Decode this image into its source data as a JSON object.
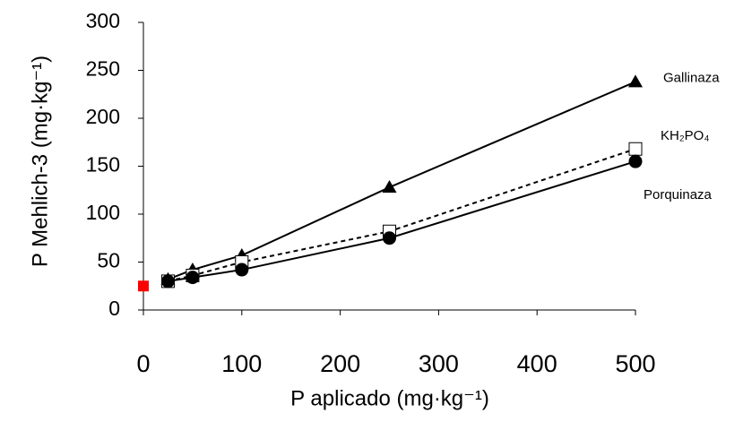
{
  "chart_data": {
    "type": "line",
    "y_label": "P Mehlich-3 (mg·kg⁻¹)",
    "x_label": "P aplicado (mg·kg⁻¹)",
    "x": [
      25,
      50,
      100,
      250,
      500
    ],
    "series": [
      {
        "name": "Gallinaza",
        "color": "#000000",
        "marker": "triangle",
        "dash": false,
        "values": [
          32,
          42,
          57,
          128,
          238
        ]
      },
      {
        "name": "KH₂PO₄",
        "color": "#000000",
        "marker": "open-square",
        "dash": true,
        "values": [
          30,
          36,
          50,
          82,
          168
        ]
      },
      {
        "name": "Porquinaza",
        "color": "#000000",
        "marker": "circle",
        "dash": false,
        "values": [
          30,
          34,
          42,
          75,
          155
        ]
      }
    ],
    "points": [
      {
        "x": 0,
        "y": 25,
        "color": "#ff0000"
      }
    ],
    "xlim": [
      0,
      500
    ],
    "xticks": [
      0,
      100,
      200,
      300,
      400,
      500
    ],
    "ylim": [
      0,
      300
    ],
    "yticks": [
      0,
      50,
      100,
      150,
      200,
      250,
      300
    ],
    "grid": false
  }
}
